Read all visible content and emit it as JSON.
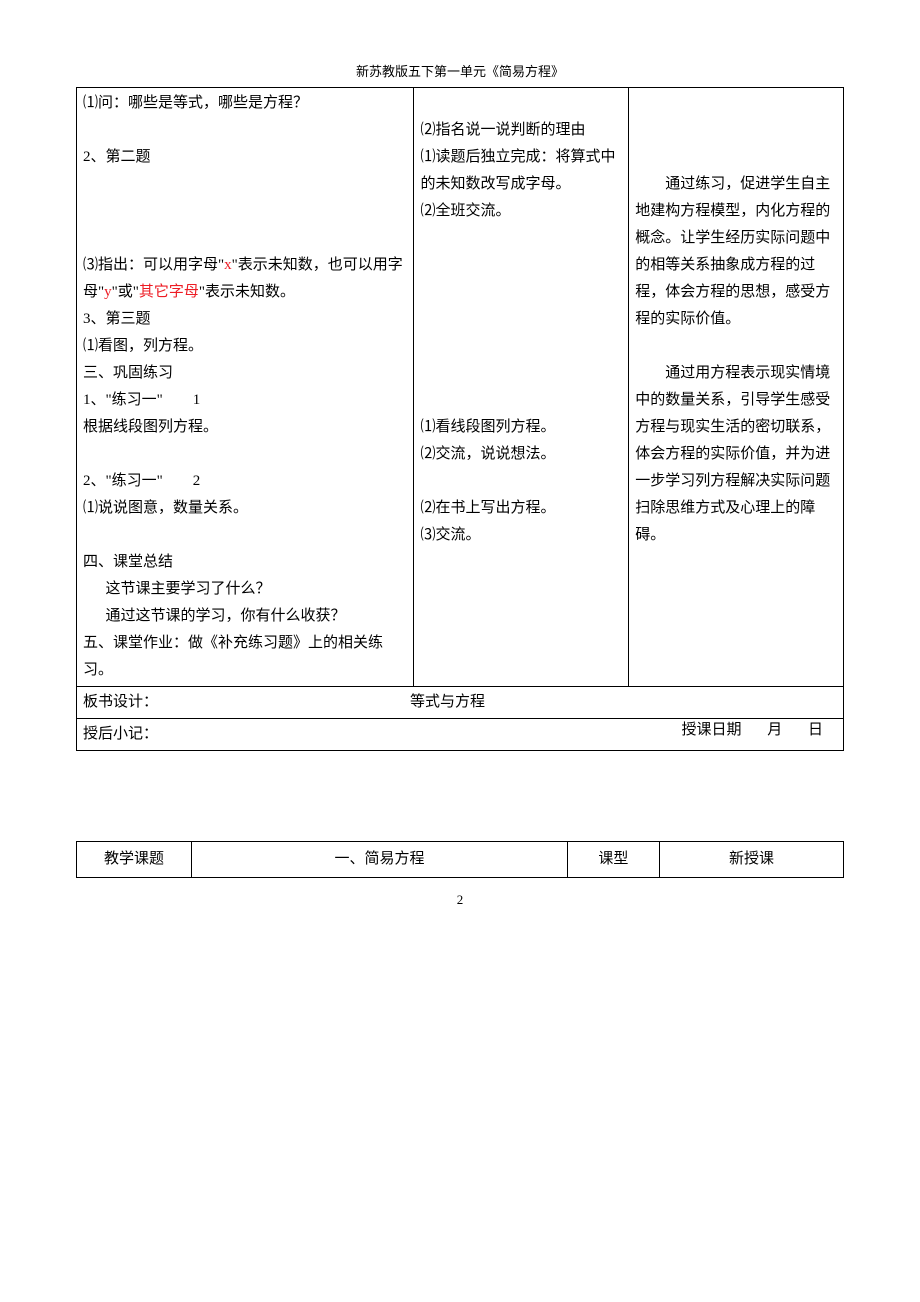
{
  "header": {
    "title": "新苏教版五下第一单元《简易方程》"
  },
  "table": {
    "col1": {
      "lines": [
        {
          "text": "⑴问：哪些是等式，哪些是方程？"
        },
        {
          "text": " "
        },
        {
          "text": "2、第二题"
        },
        {
          "text": " "
        },
        {
          "text": " "
        },
        {
          "text": " "
        },
        {
          "html": "⑶指出：可以用字母\"<span class='red-text'>x</span>\"表示未知数，也可以用字母\"<span class='red-text'>y</span>\"或\"<span class='red-text'>其它字母</span>\"表示未知数。"
        },
        {
          "text": "3、第三题"
        },
        {
          "text": "⑴看图，列方程。"
        },
        {
          "text": "三、巩固练习"
        },
        {
          "text": "1、\"练习一\"　　1"
        },
        {
          "text": "根据线段图列方程。"
        },
        {
          "text": " "
        },
        {
          "text": "2、\"练习一\"　　2"
        },
        {
          "text": "⑴说说图意，数量关系。"
        },
        {
          "text": " "
        },
        {
          "text": "四、课堂总结"
        },
        {
          "text": "这节课主要学习了什么？",
          "class": "indent1"
        },
        {
          "text": "通过这节课的学习，你有什么收获？",
          "class": "indent1"
        },
        {
          "text": "五、课堂作业：做《补充练习题》上的相关练习。"
        }
      ]
    },
    "col2": {
      "lines": [
        {
          "text": " "
        },
        {
          "text": "⑵指名说一说判断的理由"
        },
        {
          "text": "⑴读题后独立完成：将算式中的未知数改写成字母。"
        },
        {
          "text": "⑵全班交流。"
        },
        {
          "text": " "
        },
        {
          "text": " "
        },
        {
          "text": " "
        },
        {
          "text": " "
        },
        {
          "text": " "
        },
        {
          "text": " "
        },
        {
          "text": " "
        },
        {
          "text": "⑴看线段图列方程。"
        },
        {
          "text": "⑵交流，说说想法。"
        },
        {
          "text": " "
        },
        {
          "text": "⑵在书上写出方程。"
        },
        {
          "text": "⑶交流。"
        }
      ]
    },
    "col3": {
      "lines": [
        {
          "text": " "
        },
        {
          "text": " "
        },
        {
          "text": " "
        },
        {
          "text": "通过练习，促进学生自主地建构方程模型，内化方程的概念。让学生经历实际问题中的相等关系抽象成方程的过程，体会方程的思想，感受方程的实际价值。",
          "class": "indent"
        },
        {
          "text": " "
        },
        {
          "text": "通过用方程表示现实情境中的数量关系，引导学生感受方程与现实生活的密切联系，体会方程的实际价值，并为进一步学习列方程解决实际问题扫除思维方式及心理上的障碍。",
          "class": "indent"
        }
      ]
    },
    "board": {
      "label": "板书设计：",
      "title": "等式与方程"
    },
    "postnotes": {
      "label": "授后小记：",
      "date": "授课日期 月 日"
    }
  },
  "footer": {
    "c1": "教学课题",
    "c2": "一、简易方程",
    "c3": "课型",
    "c4": "新授课"
  },
  "pagenum": "2"
}
